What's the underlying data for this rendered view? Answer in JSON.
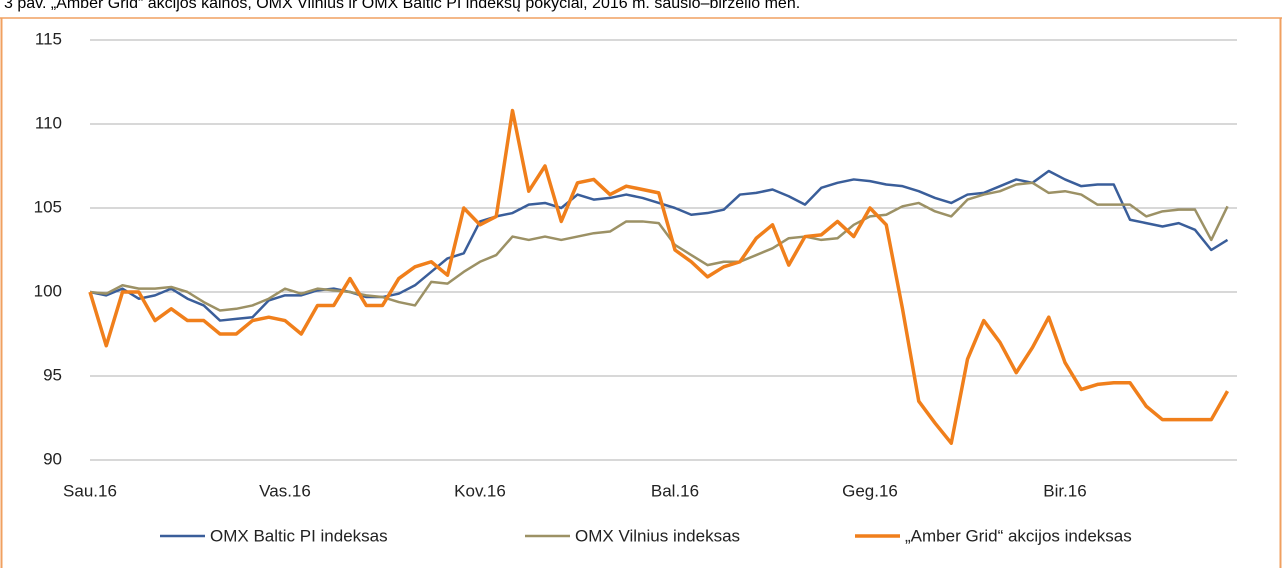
{
  "chart_data": {
    "type": "line",
    "title": "3 pav. „Amber Grid“ akcijos kainos, OMX Vilnius ir OMX Baltic PI indeksų pokyčiai, 2016 m. sausio–birželio mėn.",
    "categories": [
      "Sau.16",
      null,
      null,
      null,
      null,
      null,
      null,
      null,
      null,
      null,
      null,
      null,
      "Vas.16",
      null,
      null,
      null,
      null,
      null,
      null,
      null,
      null,
      null,
      null,
      null,
      "Kov.16",
      null,
      null,
      null,
      null,
      null,
      null,
      null,
      null,
      null,
      null,
      null,
      "Bal.16",
      null,
      null,
      null,
      null,
      null,
      null,
      null,
      null,
      null,
      null,
      null,
      "Geg.16",
      null,
      null,
      null,
      null,
      null,
      null,
      null,
      null,
      null,
      null,
      null,
      "Bir.16",
      null,
      null,
      null,
      null,
      null,
      null,
      null,
      null,
      null,
      null
    ],
    "series": [
      {
        "name": "OMX Baltic PI indeksas",
        "color": "#3a5e9a",
        "values": [
          100,
          99.8,
          100.2,
          99.6,
          99.8,
          100.2,
          99.6,
          99.2,
          98.3,
          98.4,
          98.5,
          99.5,
          99.8,
          99.8,
          100.1,
          100.2,
          100,
          99.7,
          99.7,
          99.9,
          100.4,
          101.2,
          102,
          102.3,
          104.2,
          104.5,
          104.7,
          105.2,
          105.3,
          105,
          105.8,
          105.5,
          105.6,
          105.8,
          105.6,
          105.3,
          105,
          104.6,
          104.7,
          104.9,
          105.8,
          105.9,
          106.1,
          105.7,
          105.2,
          106.2,
          106.5,
          106.7,
          106.6,
          106.4,
          106.3,
          106,
          105.6,
          105.3,
          105.8,
          105.9,
          106.3,
          106.7,
          106.5,
          107.2,
          106.7,
          106.3,
          106.4,
          106.4,
          104.3,
          104.1,
          103.9,
          104.1,
          103.7,
          102.5,
          103.1
        ]
      },
      {
        "name": "OMX Vilnius indeksas",
        "color": "#9c9165",
        "values": [
          100,
          99.9,
          100.4,
          100.2,
          100.2,
          100.3,
          100,
          99.4,
          98.9,
          99,
          99.2,
          99.6,
          100.2,
          99.9,
          100.2,
          100.1,
          100,
          99.8,
          99.7,
          99.4,
          99.2,
          100.6,
          100.5,
          101.2,
          101.8,
          102.2,
          103.3,
          103.1,
          103.3,
          103.1,
          103.3,
          103.5,
          103.6,
          104.2,
          104.2,
          104.1,
          102.8,
          102.2,
          101.6,
          101.8,
          101.8,
          102.2,
          102.6,
          103.2,
          103.3,
          103.1,
          103.2,
          104,
          104.5,
          104.6,
          105.1,
          105.3,
          104.8,
          104.5,
          105.5,
          105.8,
          106,
          106.4,
          106.5,
          105.9,
          106,
          105.8,
          105.2,
          105.2,
          105.2,
          104.5,
          104.8,
          104.9,
          104.9,
          103.1,
          105.1
        ]
      },
      {
        "name": "„Amber Grid“ akcijos indeksas",
        "color": "#f07f1b",
        "values": [
          100,
          96.8,
          100,
          100,
          98.3,
          99,
          98.3,
          98.3,
          97.5,
          97.5,
          98.3,
          98.5,
          98.3,
          97.5,
          99.2,
          99.2,
          100.8,
          99.2,
          99.2,
          100.8,
          101.5,
          101.8,
          101,
          105,
          104,
          104.5,
          110.8,
          106,
          107.5,
          104.2,
          106.5,
          106.7,
          105.8,
          106.3,
          106.1,
          105.9,
          102.5,
          101.8,
          100.9,
          101.5,
          101.8,
          103.2,
          104,
          101.6,
          103.3,
          103.4,
          104.2,
          103.3,
          105,
          104,
          99,
          93.5,
          92.2,
          91,
          96,
          98.3,
          97,
          95.2,
          96.7,
          98.5,
          95.8,
          94.2,
          94.5,
          94.6,
          94.6,
          93.2,
          92.4,
          92.4,
          92.4,
          92.4,
          94.1
        ]
      }
    ],
    "ylim": [
      90,
      115
    ],
    "yticks": [
      90,
      95,
      100,
      105,
      110,
      115
    ],
    "grid": true
  }
}
